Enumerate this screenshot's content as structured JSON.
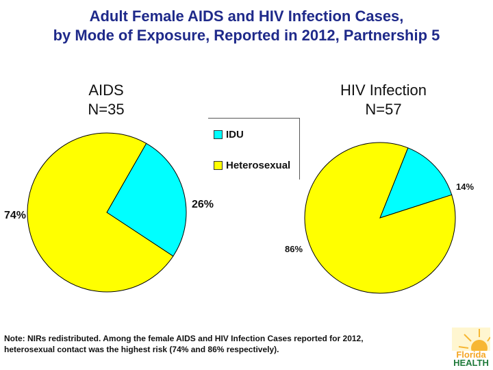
{
  "title_line1": "Adult Female AIDS and HIV Infection Cases,",
  "title_line2": "by Mode of Exposure, Reported in 2012, Partnership 5",
  "colors": {
    "idu": "#00ffff",
    "heterosexual": "#ffff00",
    "title": "#1f2a8a"
  },
  "legend": {
    "idu": "IDU",
    "heterosexual": "Heterosexual"
  },
  "chart_data": [
    {
      "type": "pie",
      "title_line1": "AIDS",
      "title_line2": "N=35",
      "categories": [
        "IDU",
        "Heterosexual"
      ],
      "values": [
        26,
        74
      ],
      "labels": [
        "26%",
        "74%"
      ]
    },
    {
      "type": "pie",
      "title_line1": "HIV Infection",
      "title_line2": "N=57",
      "categories": [
        "IDU",
        "Heterosexual"
      ],
      "values": [
        14,
        86
      ],
      "labels": [
        "14%",
        "86%"
      ]
    }
  ],
  "note_line1": "Note:  NIRs redistributed.  Among the female AIDS and HIV Infection Cases reported for 2012,",
  "note_line2": "heterosexual contact was the highest risk (74%  and 86%  respectively).",
  "logo": {
    "line1": "Florida",
    "line2": "HEALTH"
  }
}
